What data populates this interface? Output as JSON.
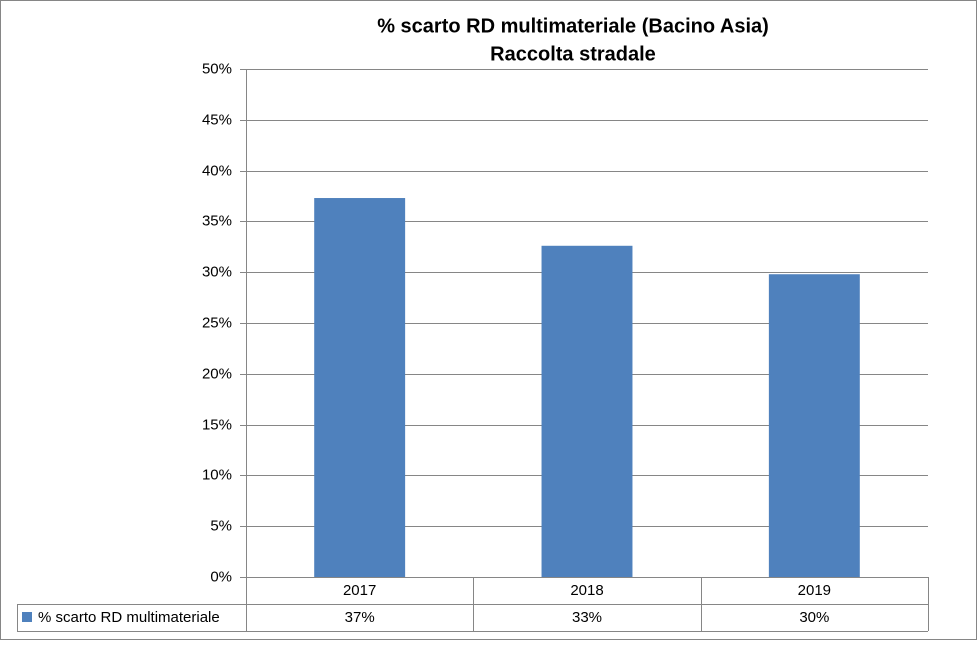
{
  "chart_data": {
    "type": "bar",
    "title": "% scarto RD multimateriale (Bacino Asia)",
    "subtitle": "Raccolta stradale",
    "categories": [
      "2017",
      "2018",
      "2019"
    ],
    "series": [
      {
        "name": "% scarto RD multimateriale",
        "color": "#4f81bd",
        "values": [
          37.3,
          32.6,
          29.8
        ],
        "value_labels": [
          "37%",
          "33%",
          "30%"
        ]
      }
    ],
    "ylim": [
      0,
      50
    ],
    "yticks": [
      {
        "value": 0,
        "label": "0%"
      },
      {
        "value": 5,
        "label": "5%"
      },
      {
        "value": 10,
        "label": "10%"
      },
      {
        "value": 15,
        "label": "15%"
      },
      {
        "value": 20,
        "label": "20%"
      },
      {
        "value": 25,
        "label": "25%"
      },
      {
        "value": 30,
        "label": "30%"
      },
      {
        "value": 35,
        "label": "35%"
      },
      {
        "value": 40,
        "label": "40%"
      },
      {
        "value": 45,
        "label": "45%"
      },
      {
        "value": 50,
        "label": "50%"
      }
    ],
    "grid": true
  }
}
